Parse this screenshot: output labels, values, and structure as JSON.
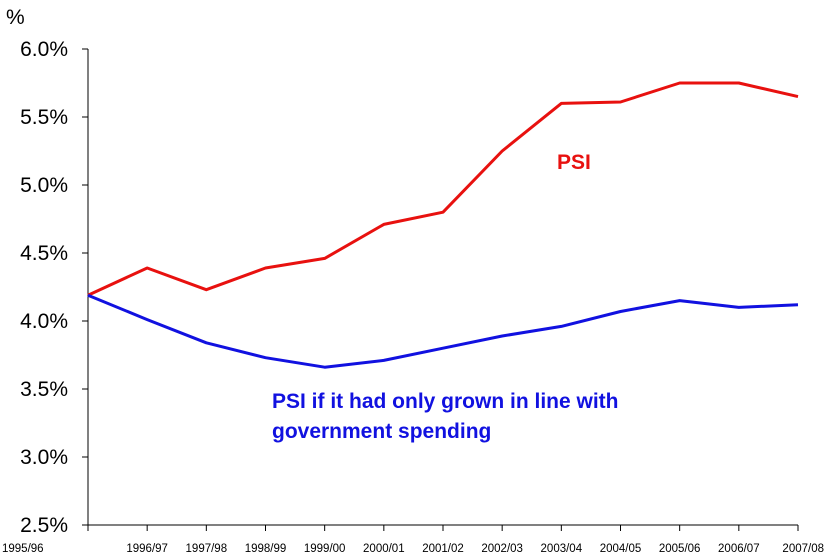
{
  "chart_data": {
    "type": "line",
    "title": "",
    "xlabel": "",
    "ylabel": "%",
    "ylim": [
      2.5,
      6.0
    ],
    "grid": false,
    "y_ticks": [
      "2.5%",
      "3.0%",
      "3.5%",
      "4.0%",
      "4.5%",
      "5.0%",
      "5.5%",
      "6.0%"
    ],
    "x": [
      "1995/96",
      "1996/97",
      "1997/98",
      "1998/99",
      "1999/00",
      "2000/01",
      "2001/02",
      "2002/03",
      "2003/04",
      "2004/05",
      "2005/06",
      "2006/07",
      "2007/08"
    ],
    "series": [
      {
        "name": "PSI",
        "color": "#e8110f",
        "values": [
          4.19,
          4.39,
          4.23,
          4.39,
          4.46,
          4.71,
          4.8,
          5.25,
          5.6,
          5.61,
          5.75,
          5.75,
          5.65
        ]
      },
      {
        "name": "PSI if it had only grown in line with government spending",
        "color": "#1111e0",
        "values": [
          4.19,
          4.01,
          3.84,
          3.73,
          3.66,
          3.71,
          3.8,
          3.89,
          3.96,
          4.07,
          4.15,
          4.1,
          4.12
        ]
      }
    ],
    "annotations": {
      "red_label": "PSI",
      "blue_label_line1": "PSI if it had only grown in line with",
      "blue_label_line2": "government spending"
    }
  }
}
